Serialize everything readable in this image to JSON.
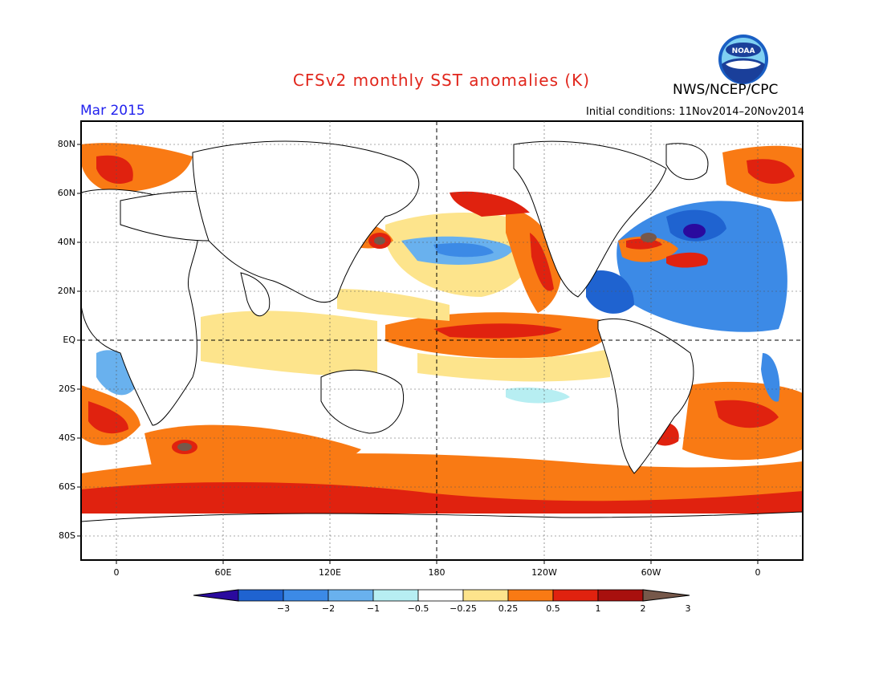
{
  "title": "CFSv2 monthly SST anomalies (K)",
  "agency": "NWS/NCEP/CPC",
  "logo_text": "NOAA",
  "month": "Mar 2015",
  "initial_conditions": "Initial conditions: 11Nov2014–20Nov2014",
  "lat_labels": [
    "80N",
    "60N",
    "40N",
    "20N",
    "EQ",
    "20S",
    "40S",
    "60S",
    "80S"
  ],
  "lon_labels": [
    "0",
    "60E",
    "120E",
    "180",
    "120W",
    "60W",
    "0"
  ],
  "colorbar": {
    "labels": [
      "−3",
      "−2",
      "−1",
      "−0.5",
      "−0.25",
      "0.25",
      "0.5",
      "1",
      "2",
      "3"
    ],
    "colors": [
      "#2a0a9e",
      "#1f63d0",
      "#3c8ae6",
      "#69b1ee",
      "#b7eef2",
      "#ffffff",
      "#fde48c",
      "#f97a14",
      "#e0220f",
      "#a8100e",
      "#76584a"
    ]
  },
  "colors": {
    "title": "#e1261c",
    "month": "#2222ee",
    "land": "#ffffff",
    "coast": "#000000"
  }
}
